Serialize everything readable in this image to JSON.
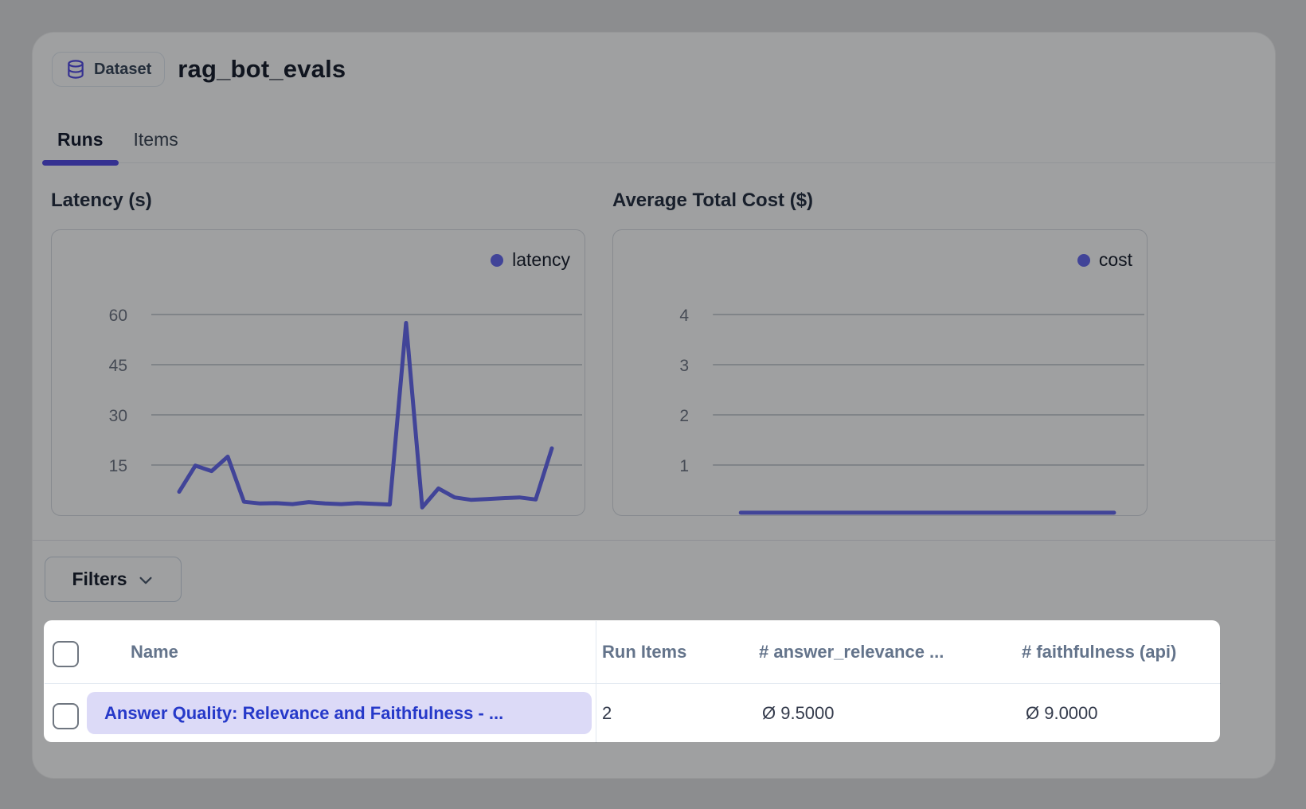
{
  "header": {
    "badge": "Dataset",
    "title": "rag_bot_evals"
  },
  "tabs": {
    "runs": "Runs",
    "items": "Items",
    "active": "Runs"
  },
  "filters": {
    "label": "Filters"
  },
  "chart_data": [
    {
      "type": "line",
      "title": "Latency (s)",
      "series": [
        {
          "name": "latency",
          "values": [
            7,
            14.8,
            13.2,
            17.5,
            4,
            3.5,
            3.6,
            3.3,
            3.9,
            3.5,
            3.3,
            3.6,
            3.4,
            3.2,
            57.5,
            2.3,
            8,
            5.3,
            4.6,
            4.8,
            5.1,
            5.3,
            4.7,
            20
          ]
        }
      ],
      "x_axis": "hidden (run sequence)",
      "y_ticks": [
        15,
        30,
        45,
        60
      ],
      "ylim": [
        0,
        64
      ],
      "grid": "horizontal",
      "legend_position": "top-right",
      "color": "#6366f1"
    },
    {
      "type": "line",
      "title": "Average Total Cost ($)",
      "series": [
        {
          "name": "cost",
          "values": [
            0.05,
            0.05,
            0.05,
            0.05,
            0.05,
            0.05,
            0.05,
            0.05,
            0.05,
            0.05,
            0.05,
            0.05,
            0.05,
            0.05,
            0.05,
            0.05,
            0.05,
            0.05,
            0.05,
            0.05,
            0.05,
            0.05,
            0.05,
            0.05
          ]
        }
      ],
      "x_axis": "hidden (run sequence)",
      "y_ticks": [
        1,
        2,
        3,
        4
      ],
      "ylim": [
        0,
        4.3
      ],
      "grid": "horizontal",
      "legend_position": "top-right",
      "color": "#6366f1"
    }
  ],
  "table": {
    "columns": [
      "Name",
      "Run Items",
      "# answer_relevance ...",
      "# faithfulness (api)"
    ],
    "rows": [
      {
        "name": "Answer Quality: Relevance and Faithfulness - ...",
        "run_items": "2",
        "answer_relevance": "Ø 9.5000",
        "faithfulness": "Ø 9.0000"
      }
    ]
  },
  "colors": {
    "accent": "#4f46e5",
    "chart_line": "#6366f1",
    "link_text": "#2639c9",
    "link_pill_bg": "#dcdaf7",
    "table_header_text": "#64748b",
    "page_bg": "#dfdfe2",
    "dim_overlay": "rgba(16,17,21,0.40)"
  }
}
